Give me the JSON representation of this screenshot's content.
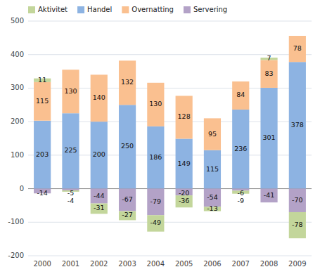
{
  "chart_data": {
    "type": "bar",
    "stacked": true,
    "categories": [
      "2000",
      "2001",
      "2002",
      "2003",
      "2004",
      "2005",
      "2006",
      "2007",
      "2008",
      "2009"
    ],
    "series": [
      {
        "name": "Aktivitet",
        "color": "#c3d69b",
        "values": [
          11,
          -4,
          -31,
          -27,
          -49,
          -36,
          -13,
          -9,
          7,
          -78
        ]
      },
      {
        "name": "Handel",
        "color": "#8db3e2",
        "values": [
          203,
          225,
          200,
          250,
          186,
          149,
          115,
          236,
          301,
          378
        ]
      },
      {
        "name": "Overnatting",
        "color": "#fac090",
        "values": [
          115,
          130,
          140,
          132,
          130,
          128,
          95,
          84,
          83,
          78
        ]
      },
      {
        "name": "Servering",
        "color": "#b3a2c7",
        "values": [
          -14,
          -5,
          -44,
          -67,
          -79,
          -20,
          -54,
          -6,
          -41,
          -70
        ]
      }
    ],
    "ylim": [
      -200,
      500
    ],
    "yticks": [
      -200,
      -100,
      0,
      100,
      200,
      300,
      400,
      500
    ],
    "grid": true,
    "legend": "upper left",
    "data_labels": true
  }
}
